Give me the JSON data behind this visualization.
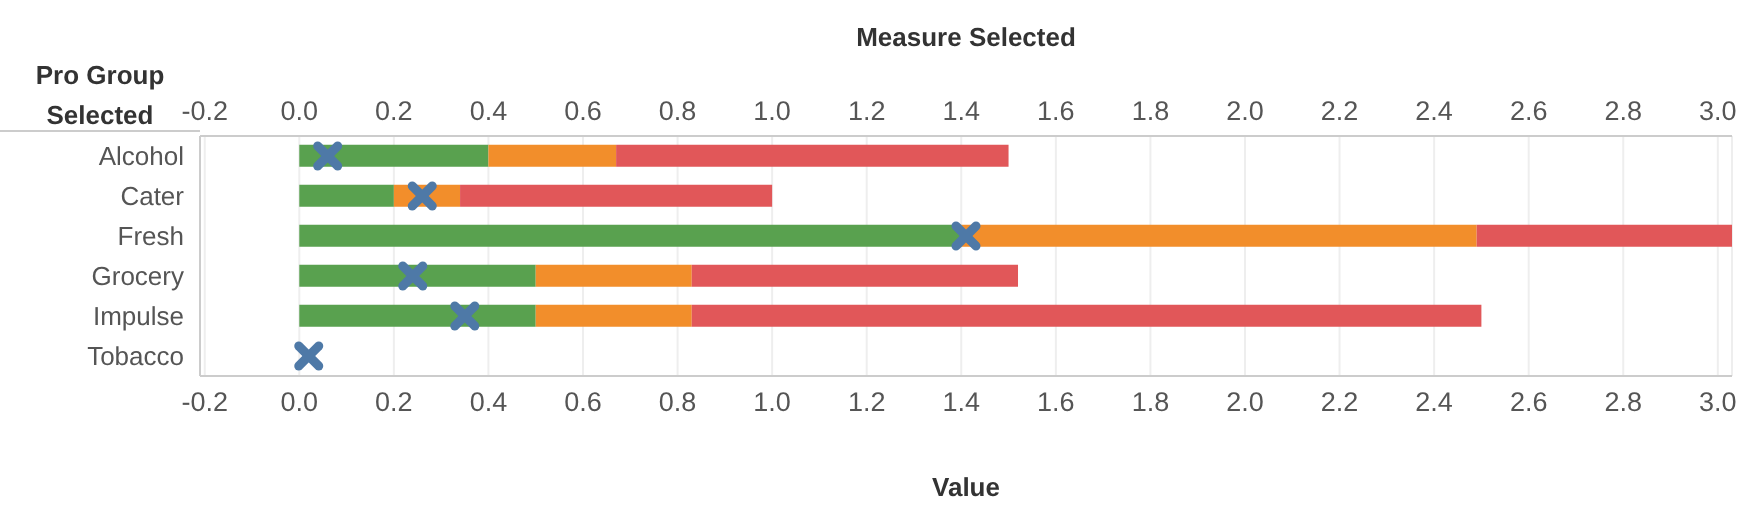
{
  "chart_data": {
    "type": "bar",
    "orientation": "horizontal",
    "stacked": true,
    "x2label": "Measure Selected",
    "xlabel": "Value",
    "ylabel": "Pro Group Selected",
    "categories": [
      "Alcohol",
      "Cater",
      "Fresh",
      "Grocery",
      "Impulse",
      "Tobacco"
    ],
    "series": [
      {
        "type": "bar",
        "color": "#59a14f",
        "values": [
          0.4,
          0.2,
          1.4,
          0.5,
          0.5,
          0
        ]
      },
      {
        "type": "bar",
        "color": "#f28e2b",
        "values": [
          0.27,
          0.14,
          1.09,
          0.33,
          0.33,
          0
        ]
      },
      {
        "type": "bar",
        "color": "#e15759",
        "values": [
          0.83,
          0.66,
          0.54,
          0.69,
          1.67,
          0
        ]
      },
      {
        "type": "scatter",
        "color": "#4e79a7",
        "marker": "cross",
        "values": [
          0.06,
          0.26,
          1.41,
          0.24,
          0.35,
          0.02
        ]
      }
    ],
    "xlim": [
      -0.21,
      3.03
    ],
    "xticks": [
      {
        "value": -0.2,
        "label": "-0.2"
      },
      {
        "value": 0,
        "label": "0.0"
      },
      {
        "value": 0.2,
        "label": "0.2"
      },
      {
        "value": 0.4,
        "label": "0.4"
      },
      {
        "value": 0.6,
        "label": "0.6"
      },
      {
        "value": 0.8,
        "label": "0.8"
      },
      {
        "value": 1,
        "label": "1.0"
      },
      {
        "value": 1.2,
        "label": "1.2"
      },
      {
        "value": 1.4,
        "label": "1.4"
      },
      {
        "value": 1.6,
        "label": "1.6"
      },
      {
        "value": 1.8,
        "label": "1.8"
      },
      {
        "value": 2,
        "label": "2.0"
      },
      {
        "value": 2.2,
        "label": "2.2"
      },
      {
        "value": 2.4,
        "label": "2.4"
      },
      {
        "value": 2.6,
        "label": "2.6"
      },
      {
        "value": 2.8,
        "label": "2.8"
      },
      {
        "value": 3,
        "label": "3.0"
      }
    ],
    "x2lim": [
      -0.21,
      3.03
    ],
    "x2ticks": [
      {
        "value": -0.2,
        "label": "-0.2"
      },
      {
        "value": 0,
        "label": "0.0"
      },
      {
        "value": 0.2,
        "label": "0.2"
      },
      {
        "value": 0.4,
        "label": "0.4"
      },
      {
        "value": 0.6,
        "label": "0.6"
      },
      {
        "value": 0.8,
        "label": "0.8"
      },
      {
        "value": 1,
        "label": "1.0"
      },
      {
        "value": 1.2,
        "label": "1.2"
      },
      {
        "value": 1.4,
        "label": "1.4"
      },
      {
        "value": 1.6,
        "label": "1.6"
      },
      {
        "value": 1.8,
        "label": "1.8"
      },
      {
        "value": 2,
        "label": "2.0"
      },
      {
        "value": 2.2,
        "label": "2.2"
      },
      {
        "value": 2.4,
        "label": "2.4"
      },
      {
        "value": 2.6,
        "label": "2.6"
      },
      {
        "value": 2.8,
        "label": "2.8"
      },
      {
        "value": 3,
        "label": "3.0"
      }
    ],
    "grid": "x",
    "legend": false
  }
}
